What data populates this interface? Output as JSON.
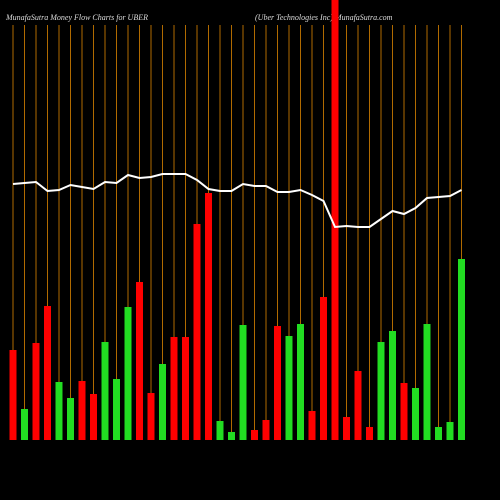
{
  "chart_data": {
    "type": "bar",
    "title": "MunafaSutra  Money Flow  Charts for UBER",
    "subtitle": "(Uber Technologies Inc) MunafaSutra.com",
    "categories": [
      null,
      null,
      null,
      null,
      null,
      null,
      null,
      null,
      null,
      null,
      null,
      null,
      null,
      null,
      null,
      null,
      null,
      null,
      null,
      null,
      null,
      null,
      null,
      null,
      null,
      null,
      null,
      null,
      null,
      null,
      null,
      null,
      null,
      null,
      null,
      null,
      null,
      null,
      null,
      null
    ],
    "values": [
      90,
      31,
      97,
      134,
      58,
      42,
      59,
      46,
      98,
      61,
      133,
      158,
      47,
      76,
      103,
      103,
      216,
      247,
      19,
      8,
      115,
      10,
      20,
      114,
      104,
      116,
      29,
      143,
      440,
      23,
      69,
      13,
      98,
      109,
      57,
      52,
      116,
      13,
      18,
      181
    ],
    "colors": [
      "#ff0000",
      "#22dd22",
      "#ff0000",
      "#ff0000",
      "#22dd22",
      "#22dd22",
      "#ff0000",
      "#ff0000",
      "#22dd22",
      "#22dd22",
      "#22dd22",
      "#ff0000",
      "#ff0000",
      "#22dd22",
      "#ff0000",
      "#ff0000",
      "#ff0000",
      "#ff0000",
      "#22dd22",
      "#22dd22",
      "#22dd22",
      "#ff0000",
      "#ff0000",
      "#ff0000",
      "#22dd22",
      "#22dd22",
      "#ff0000",
      "#ff0000",
      "#ff0000",
      "#ff0000",
      "#ff0000",
      "#ff0000",
      "#22dd22",
      "#22dd22",
      "#ff0000",
      "#22dd22",
      "#22dd22",
      "#22dd22",
      "#22dd22",
      "#22dd22"
    ],
    "line": {
      "color": "#ffffff",
      "values": [
        256,
        257,
        258,
        249,
        250,
        255,
        253,
        251,
        258,
        257,
        265,
        262,
        263,
        266,
        266,
        266,
        260,
        251,
        249,
        249,
        256,
        254,
        254,
        248,
        248,
        250,
        245,
        239,
        213,
        214,
        213,
        213,
        221,
        229,
        226,
        232,
        242,
        243,
        244,
        250
      ]
    },
    "ylim": [
      0,
      440
    ],
    "grid_color": "#b06a00"
  }
}
